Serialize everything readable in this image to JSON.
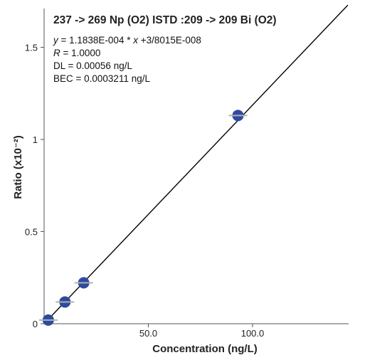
{
  "chart_data": {
    "type": "scatter",
    "title": "237 -> 269 Np (O2) ISTD :209 -> 209 Bi (O2)",
    "xlabel": "Concentration (ng/L)",
    "ylabel": "Ratio (x10⁻²)",
    "xlim": [
      0,
      140
    ],
    "ylim": [
      0,
      1.65
    ],
    "x_ticks": [
      50,
      100
    ],
    "x_tick_labels": [
      "50.0",
      "100.0"
    ],
    "y_ticks": [
      0,
      0.5,
      1,
      1.5
    ],
    "y_tick_labels": [
      "0",
      "0.5",
      "1",
      "1.5"
    ],
    "annotations": [
      {
        "prefix": "y",
        "text": " = 1.1838E-004 * ",
        "var": "x",
        "suffix": " +3/8015E-008"
      },
      {
        "prefix": "R",
        "text": " = 1.0000",
        "var": "",
        "suffix": ""
      },
      {
        "prefix": "",
        "text": "DL = 0.00056 ng/L",
        "var": "",
        "suffix": ""
      },
      {
        "prefix": "",
        "text": "BEC = 0.0003211 ng/L",
        "var": "",
        "suffix": ""
      }
    ],
    "fit": {
      "slope": 0.011838,
      "intercept": 0.0
    },
    "points": [
      {
        "x": 2,
        "y": 0.02
      },
      {
        "x": 10,
        "y": 0.118
      },
      {
        "x": 19,
        "y": 0.222
      },
      {
        "x": 93,
        "y": 1.13
      }
    ],
    "grid": false,
    "colors": {
      "point": "#2e4a9e",
      "line": "#000000",
      "errorbar": "#b0b0b0"
    }
  }
}
